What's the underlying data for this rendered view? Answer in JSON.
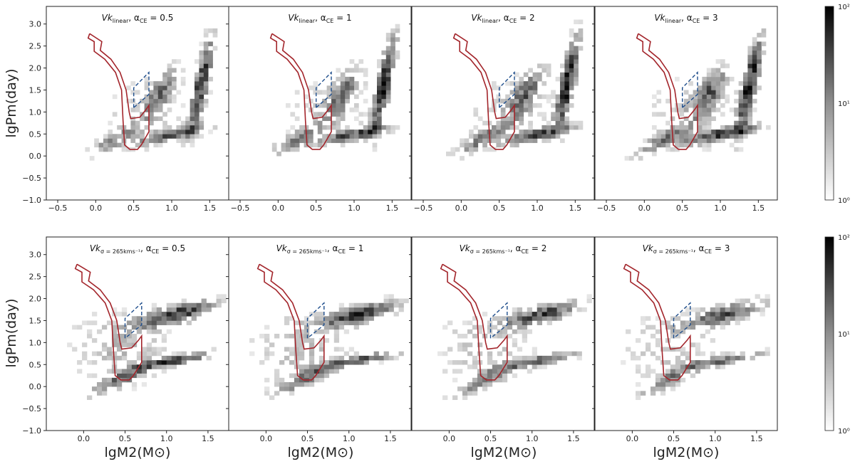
{
  "chart_data": {
    "type": "heatmap",
    "xlabel": "lgM2(M⊙)",
    "ylabel": "lgPm(day)",
    "x_ticks": [
      "−0.5",
      "0.0",
      "0.5",
      "1.0",
      "1.5"
    ],
    "y_ticks": [
      "−1.0",
      "−0.5",
      "0.0",
      "0.5",
      "1.0",
      "1.5",
      "2.0",
      "2.5",
      "3.0"
    ],
    "colorbar": {
      "scale": "log",
      "tick_labels": [
        "10⁰",
        "10¹",
        "10²"
      ],
      "range": [
        1,
        100
      ],
      "colormap": "Greys"
    },
    "rows": [
      {
        "xlim": [
          -0.65,
          1.75
        ],
        "ylim": [
          -1.0,
          3.4
        ],
        "x_tick_values": [
          -0.5,
          0.0,
          0.5,
          1.0,
          1.5
        ],
        "panels": [
          {
            "title": "Vk_linear, α_CE = 0.5",
            "title_main": "Vk",
            "title_sub": "linear",
            "title_rest": ", α",
            "title_sub2": "CE",
            "title_end": " = 0.5"
          },
          {
            "title": "Vk_linear, α_CE = 1",
            "title_main": "Vk",
            "title_sub": "linear",
            "title_rest": ", α",
            "title_sub2": "CE",
            "title_end": " = 1"
          },
          {
            "title": "Vk_linear, α_CE = 2",
            "title_main": "Vk",
            "title_sub": "linear",
            "title_rest": ", α",
            "title_sub2": "CE",
            "title_end": " = 2"
          },
          {
            "title": "Vk_linear, α_CE = 3",
            "title_main": "Vk",
            "title_sub": "linear",
            "title_rest": ", α",
            "title_sub2": "CE",
            "title_end": " = 3"
          }
        ]
      },
      {
        "xlim": [
          -0.45,
          1.75
        ],
        "ylim": [
          -1.0,
          3.4
        ],
        "x_tick_values": [
          0.0,
          0.5,
          1.0,
          1.5
        ],
        "panels": [
          {
            "title": "Vk_σ=265kms⁻¹, α_CE = 0.5",
            "title_main": "Vk",
            "title_sub": "σ = 265kms⁻¹",
            "title_rest": ", α",
            "title_sub2": "CE",
            "title_end": " = 0.5"
          },
          {
            "title": "Vk_σ=265kms⁻¹, α_CE = 1",
            "title_main": "Vk",
            "title_sub": "σ = 265kms⁻¹",
            "title_rest": ", α",
            "title_sub2": "CE",
            "title_end": " = 1"
          },
          {
            "title": "Vk_σ=265kms⁻¹, α_CE = 2",
            "title_main": "Vk",
            "title_sub": "σ = 265kms⁻¹",
            "title_rest": ", α",
            "title_sub2": "CE",
            "title_end": " = 2"
          },
          {
            "title": "Vk_σ=265kms⁻¹, α_CE = 3",
            "title_main": "Vk",
            "title_sub": "σ = 265kms⁻¹",
            "title_rest": ", α",
            "title_sub2": "CE",
            "title_end": " = 3"
          }
        ]
      }
    ],
    "overlays": {
      "red_region": {
        "color": "#a3252b",
        "outline": [
          [
            -0.08,
            2.78
          ],
          [
            0.08,
            2.6
          ],
          [
            0.06,
            2.4
          ],
          [
            0.2,
            2.2
          ],
          [
            0.32,
            1.9
          ],
          [
            0.4,
            1.5
          ],
          [
            0.44,
            1.0
          ],
          [
            0.46,
            0.85
          ],
          [
            0.58,
            0.88
          ],
          [
            0.66,
            1.05
          ],
          [
            0.7,
            1.15
          ],
          [
            0.7,
            0.55
          ],
          [
            0.6,
            0.25
          ],
          [
            0.55,
            0.15
          ],
          [
            0.45,
            0.15
          ],
          [
            0.38,
            0.25
          ],
          [
            0.36,
            0.8
          ],
          [
            0.34,
            1.5
          ],
          [
            0.26,
            1.9
          ],
          [
            0.12,
            2.2
          ],
          [
            -0.02,
            2.38
          ],
          [
            -0.02,
            2.6
          ],
          [
            -0.1,
            2.68
          ],
          [
            -0.08,
            2.78
          ]
        ]
      },
      "blue_dashed_region": {
        "color": "#1f4e8c",
        "outline": [
          [
            0.5,
            1.1
          ],
          [
            0.5,
            1.55
          ],
          [
            0.7,
            1.9
          ],
          [
            0.7,
            1.4
          ],
          [
            0.5,
            1.1
          ]
        ]
      }
    }
  }
}
